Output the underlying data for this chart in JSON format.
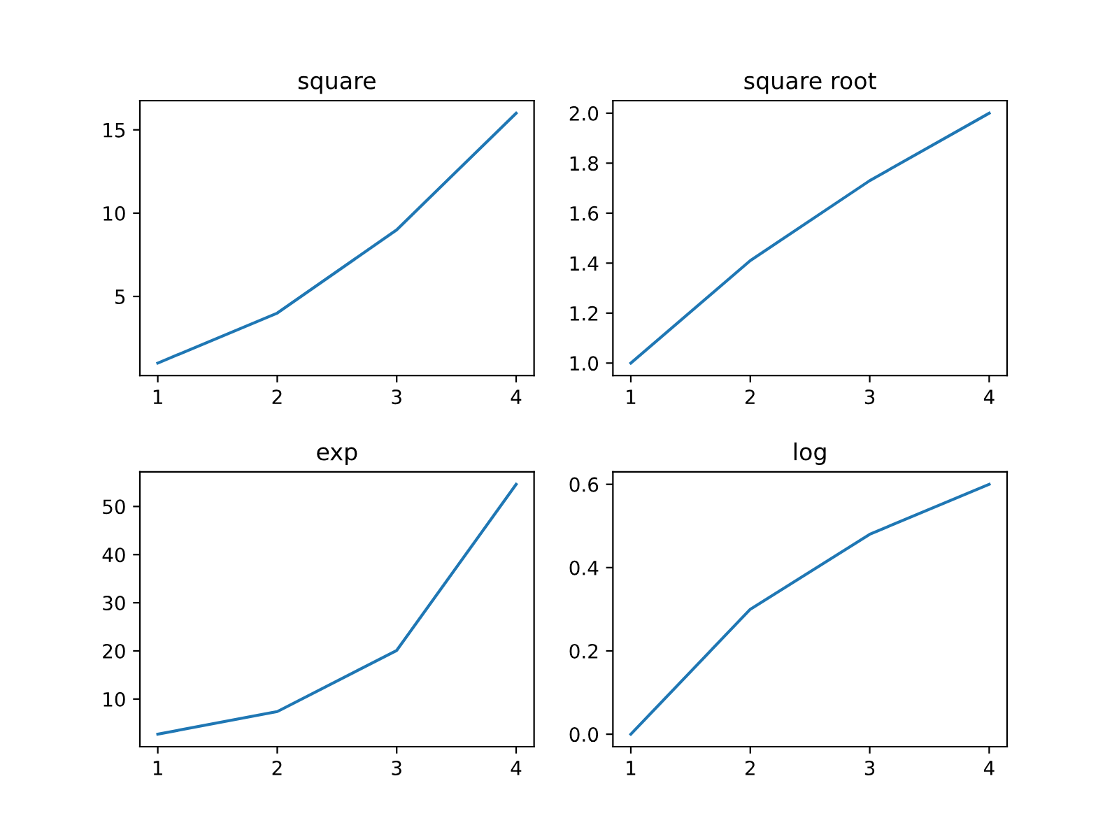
{
  "chart_data": [
    {
      "type": "line",
      "title": "square",
      "x": [
        1,
        2,
        3,
        4
      ],
      "series": [
        {
          "color": "#1f77b4",
          "values": [
            1,
            4,
            9,
            16
          ]
        }
      ],
      "xlim": [
        0.85,
        4.15
      ],
      "xticks": [
        1,
        2,
        3,
        4
      ],
      "ylim": [
        0.25,
        16.75
      ],
      "yticks": [
        5,
        10,
        15
      ],
      "grid": false,
      "legend": false
    },
    {
      "type": "line",
      "title": "square root",
      "x": [
        1,
        2,
        3,
        4
      ],
      "series": [
        {
          "color": "#1f77b4",
          "values": [
            1,
            1.41,
            1.73,
            2
          ]
        }
      ],
      "xlim": [
        0.85,
        4.15
      ],
      "xticks": [
        1,
        2,
        3,
        4
      ],
      "ylim": [
        0.95,
        2.05
      ],
      "yticks": [
        {
          "value": 1,
          "label": "1.0"
        },
        {
          "value": 1.2,
          "label": "1.2"
        },
        {
          "value": 1.4,
          "label": "1.4"
        },
        {
          "value": 1.6,
          "label": "1.6"
        },
        {
          "value": 1.8,
          "label": "1.8"
        },
        {
          "value": 2,
          "label": "2.0"
        }
      ],
      "grid": false,
      "legend": false
    },
    {
      "type": "line",
      "title": "exp",
      "x": [
        1,
        2,
        3,
        4
      ],
      "series": [
        {
          "color": "#1f77b4",
          "values": [
            2.7,
            7.4,
            20.1,
            54.6
          ]
        }
      ],
      "xlim": [
        0.85,
        4.15
      ],
      "xticks": [
        1,
        2,
        3,
        4
      ],
      "ylim": [
        0.1,
        57.2
      ],
      "yticks": [
        10,
        20,
        30,
        40,
        50
      ],
      "grid": false,
      "legend": false
    },
    {
      "type": "line",
      "title": "log",
      "x": [
        1,
        2,
        3,
        4
      ],
      "series": [
        {
          "color": "#1f77b4",
          "values": [
            0,
            0.3,
            0.48,
            0.6
          ]
        }
      ],
      "xlim": [
        0.85,
        4.15
      ],
      "xticks": [
        1,
        2,
        3,
        4
      ],
      "ylim": [
        -0.03,
        0.63
      ],
      "yticks": [
        {
          "value": 0,
          "label": "0.0"
        },
        {
          "value": 0.2,
          "label": "0.2"
        },
        {
          "value": 0.4,
          "label": "0.4"
        },
        {
          "value": 0.6,
          "label": "0.6"
        }
      ],
      "grid": false,
      "legend": false
    }
  ]
}
